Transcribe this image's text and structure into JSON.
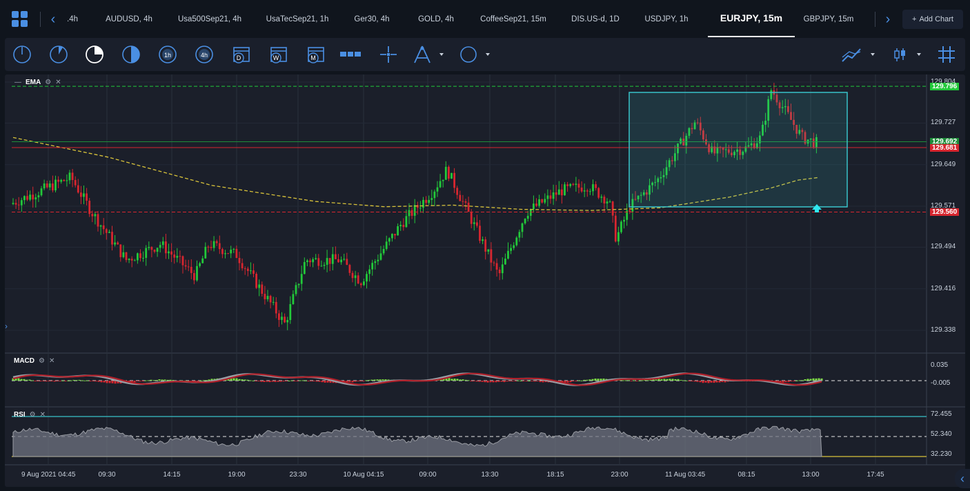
{
  "tabs": {
    "items": [
      {
        "label": ".4h"
      },
      {
        "label": "AUDUSD, 4h"
      },
      {
        "label": "Usa500Sep21, 4h"
      },
      {
        "label": "UsaTecSep21, 1h"
      },
      {
        "label": "Ger30, 4h"
      },
      {
        "label": "GOLD, 4h"
      },
      {
        "label": "CoffeeSep21, 15m"
      },
      {
        "label": "DIS.US-d, 1D"
      },
      {
        "label": "USDJPY, 1h"
      },
      {
        "label": "EURJPY, 15m"
      },
      {
        "label": "GBPJPY, 15m"
      }
    ],
    "active_index": 9,
    "add_chart_label": "Add Chart"
  },
  "toolbar": {
    "timeframes": [
      {
        "icon": "clock-1m-icon"
      },
      {
        "icon": "clock-5m-icon"
      },
      {
        "icon": "clock-15m-icon"
      },
      {
        "icon": "clock-30m-icon"
      },
      {
        "label": "1h"
      },
      {
        "label": "4h"
      },
      {
        "label": "D"
      },
      {
        "label": "W"
      },
      {
        "label": "M"
      }
    ],
    "tools": [
      "ruler-icon",
      "crosshair-icon",
      "compass-drawing-icon",
      "circle-shape-icon"
    ],
    "right_tools": [
      "line-chart-type-icon",
      "candlestick-type-icon",
      "grid-toggle-icon"
    ]
  },
  "chart": {
    "symbol": "EURJPY, 15m",
    "indicator_main": "EMA",
    "price_ticks": [
      "129.804",
      "129.727",
      "129.649",
      "129.571",
      "129.494",
      "129.416",
      "129.338"
    ],
    "price_tags": [
      {
        "value": "129.796",
        "color": "#22c93a"
      },
      {
        "value": "129.692",
        "color": "#1e8e3a"
      },
      {
        "value": "129.681",
        "color": "#d7262f"
      },
      {
        "value": "129.560",
        "color": "#d7262f"
      }
    ],
    "time_ticks": [
      "9 Aug 2021 04:45",
      "09:30",
      "14:15",
      "19:00",
      "23:30",
      "10 Aug 04:15",
      "09:00",
      "13:30",
      "18:15",
      "23:00",
      "11 Aug 03:45",
      "08:15",
      "13:00",
      "17:45"
    ],
    "macd": {
      "name": "MACD",
      "ticks": [
        "0.035",
        "-0.005"
      ]
    },
    "rsi": {
      "name": "RSI",
      "ticks": [
        "72.455",
        "52.340",
        "32.230"
      ]
    },
    "colors": {
      "up": "#22c93a",
      "down": "#d7262f",
      "ema": "#d9c33a",
      "box": "#38c3c9"
    }
  }
}
